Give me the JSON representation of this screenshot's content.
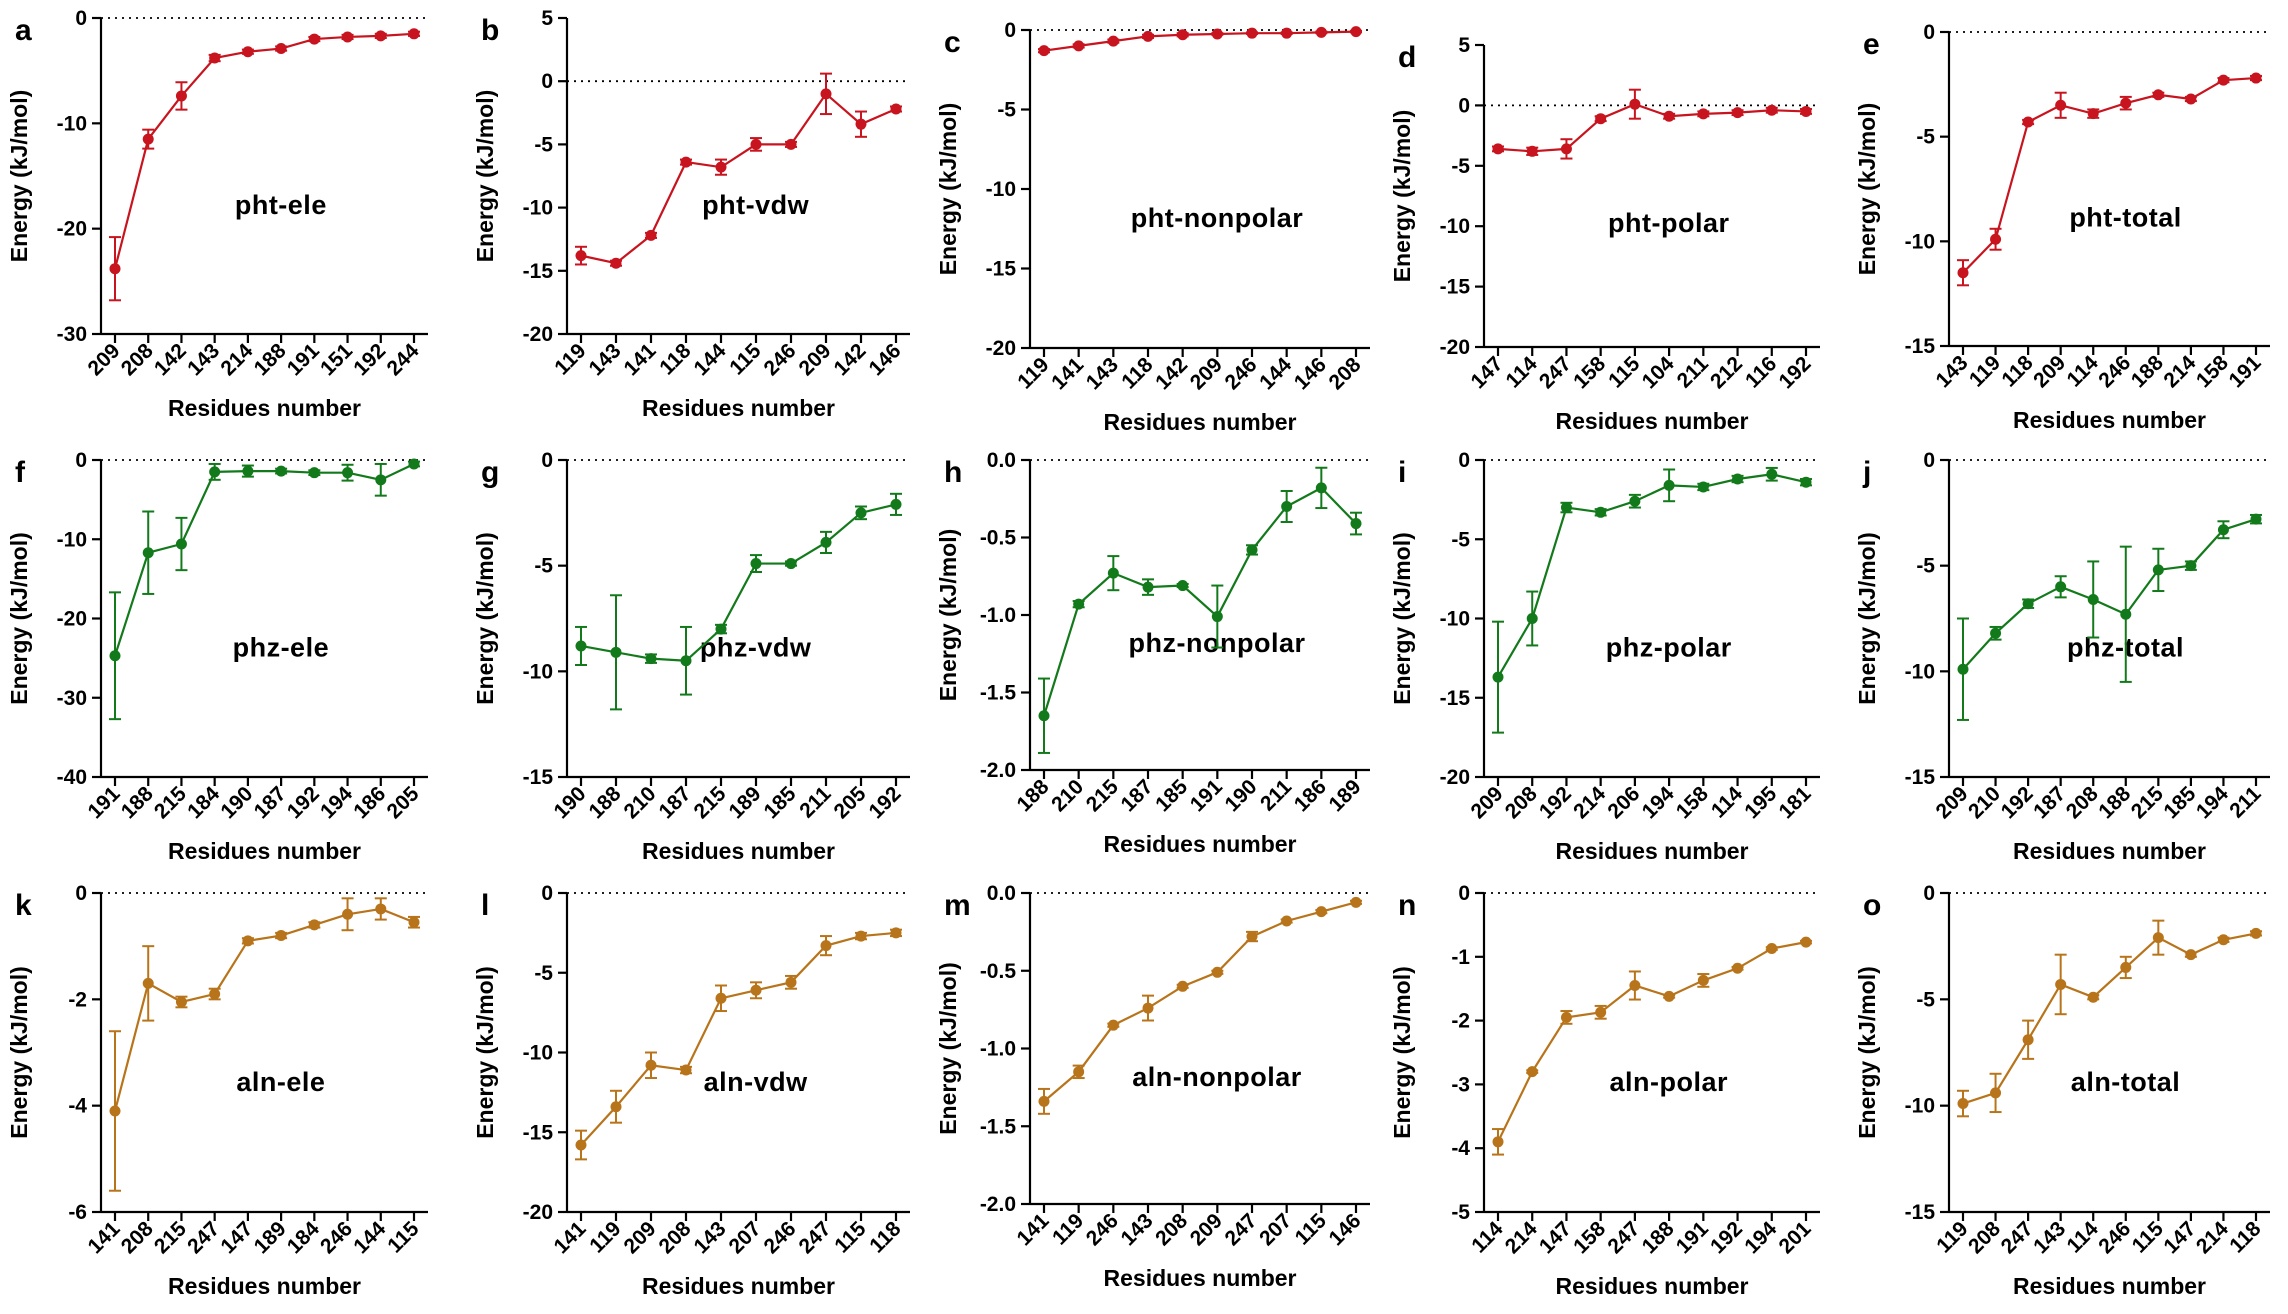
{
  "figure": {
    "colors": {
      "pht": "#c8141e",
      "phz": "#137a1b",
      "aln": "#b8741a"
    },
    "xlabel": "Residues number",
    "ylabel": "Energy (kJ/mol)"
  },
  "chart_data": [
    {
      "panel": "a",
      "type": "line",
      "title": "pht-ele",
      "color": "#c8141e",
      "xlabel": "Residues number",
      "ylabel": "Energy (kJ/mol)",
      "ylim": [
        -30,
        0
      ],
      "yticks": [
        "0",
        "-10",
        "-20",
        "-30"
      ],
      "ytick_values": [
        0,
        -10,
        -20,
        -30
      ],
      "categories": [
        "209",
        "208",
        "142",
        "143",
        "214",
        "188",
        "191",
        "151",
        "192",
        "244"
      ],
      "values": [
        -23.8,
        -11.5,
        -7.4,
        -3.8,
        -3.2,
        -2.9,
        -2.0,
        -1.8,
        -1.7,
        -1.5
      ],
      "errors": [
        3.0,
        0.9,
        1.3,
        0.3,
        0.2,
        0.2,
        0.2,
        0.2,
        0.2,
        0.2
      ]
    },
    {
      "panel": "b",
      "type": "line",
      "title": "pht-vdw",
      "color": "#c8141e",
      "xlabel": "Residues number",
      "ylabel": "Energy (kJ/mol)",
      "ylim": [
        -20,
        5
      ],
      "yticks": [
        "5",
        "0",
        "-5",
        "-10",
        "-15",
        "-20"
      ],
      "ytick_values": [
        5,
        0,
        -5,
        -10,
        -15,
        -20
      ],
      "categories": [
        "119",
        "143",
        "141",
        "118",
        "144",
        "115",
        "246",
        "209",
        "142",
        "146"
      ],
      "values": [
        -13.8,
        -14.4,
        -12.2,
        -6.4,
        -6.8,
        -5.0,
        -5.0,
        -1.0,
        -3.4,
        -2.2
      ],
      "errors": [
        0.7,
        0.2,
        0.2,
        0.2,
        0.6,
        0.5,
        0.2,
        1.6,
        1.0,
        0.2
      ]
    },
    {
      "panel": "c",
      "type": "line",
      "title": "pht-nonpolar",
      "color": "#c8141e",
      "xlabel": "Residues number",
      "ylabel": "Energy (kJ/mol)",
      "ylim": [
        -20,
        0
      ],
      "yticks": [
        "0",
        "-5",
        "-10",
        "-15",
        "-20"
      ],
      "ytick_values": [
        0,
        -5,
        -10,
        -15,
        -20
      ],
      "categories": [
        "119",
        "141",
        "143",
        "118",
        "142",
        "209",
        "246",
        "144",
        "146",
        "208"
      ],
      "values": [
        -1.3,
        -1.0,
        -0.7,
        -0.4,
        -0.3,
        -0.25,
        -0.2,
        -0.2,
        -0.15,
        -0.1
      ],
      "errors": [
        0.1,
        0.1,
        0.1,
        0.1,
        0.1,
        0.05,
        0.05,
        0.05,
        0.05,
        0.05
      ]
    },
    {
      "panel": "d",
      "type": "line",
      "title": "pht-polar",
      "color": "#c8141e",
      "xlabel": "Residues number",
      "ylabel": "Energy (kJ/mol)",
      "ylim": [
        -20,
        5
      ],
      "yticks": [
        "5",
        "0",
        "-5",
        "-10",
        "-15",
        "-20"
      ],
      "ytick_values": [
        5,
        0,
        -5,
        -10,
        -15,
        -20
      ],
      "categories": [
        "147",
        "114",
        "247",
        "158",
        "115",
        "104",
        "211",
        "212",
        "116",
        "192"
      ],
      "values": [
        -3.6,
        -3.8,
        -3.6,
        -1.1,
        0.1,
        -0.9,
        -0.7,
        -0.6,
        -0.4,
        -0.5
      ],
      "errors": [
        0.2,
        0.3,
        0.8,
        0.2,
        1.2,
        0.2,
        0.2,
        0.2,
        0.2,
        0.2
      ]
    },
    {
      "panel": "e",
      "type": "line",
      "title": "pht-total",
      "color": "#c8141e",
      "xlabel": "Residues number",
      "ylabel": "Energy (kJ/mol)",
      "ylim": [
        -15,
        0
      ],
      "yticks": [
        "0",
        "-5",
        "-10",
        "-15"
      ],
      "ytick_values": [
        0,
        -5,
        -10,
        -15
      ],
      "categories": [
        "143",
        "119",
        "118",
        "209",
        "114",
        "246",
        "188",
        "214",
        "158",
        "191"
      ],
      "values": [
        -11.5,
        -9.9,
        -4.3,
        -3.5,
        -3.9,
        -3.4,
        -3.0,
        -3.2,
        -2.3,
        -2.2
      ],
      "errors": [
        0.6,
        0.5,
        0.1,
        0.6,
        0.2,
        0.3,
        0.1,
        0.1,
        0.1,
        0.1
      ]
    },
    {
      "panel": "f",
      "type": "line",
      "title": "phz-ele",
      "color": "#137a1b",
      "xlabel": "Residues number",
      "ylabel": "Energy (kJ/mol)",
      "ylim": [
        -40,
        0
      ],
      "yticks": [
        "0",
        "-10",
        "-20",
        "-30",
        "-40"
      ],
      "ytick_values": [
        0,
        -10,
        -20,
        -30,
        -40
      ],
      "categories": [
        "191",
        "188",
        "215",
        "184",
        "190",
        "187",
        "192",
        "194",
        "186",
        "205"
      ],
      "values": [
        -24.7,
        -11.7,
        -10.6,
        -1.5,
        -1.4,
        -1.4,
        -1.6,
        -1.6,
        -2.5,
        -0.5
      ],
      "errors": [
        8.0,
        5.2,
        3.3,
        1.0,
        0.7,
        0.3,
        0.3,
        1.0,
        2.0,
        0.3
      ]
    },
    {
      "panel": "g",
      "type": "line",
      "title": "phz-vdw",
      "color": "#137a1b",
      "xlabel": "Residues number",
      "ylabel": "Energy (kJ/mol)",
      "ylim": [
        -15,
        0
      ],
      "yticks": [
        "0",
        "-5",
        "-10",
        "-15"
      ],
      "ytick_values": [
        0,
        -5,
        -10,
        -15
      ],
      "categories": [
        "190",
        "188",
        "210",
        "187",
        "215",
        "189",
        "185",
        "211",
        "205",
        "192"
      ],
      "values": [
        -8.8,
        -9.1,
        -9.4,
        -9.5,
        -8.0,
        -4.9,
        -4.9,
        -3.9,
        -2.5,
        -2.1
      ],
      "errors": [
        0.9,
        2.7,
        0.2,
        1.6,
        0.2,
        0.4,
        0.1,
        0.5,
        0.3,
        0.5
      ]
    },
    {
      "panel": "h",
      "type": "line",
      "title": "phz-nonpolar",
      "color": "#137a1b",
      "xlabel": "Residues number",
      "ylabel": "Energy (kJ/mol)",
      "ylim": [
        -2.0,
        0.0
      ],
      "yticks": [
        "0.0",
        "-0.5",
        "-1.0",
        "-1.5",
        "-2.0"
      ],
      "ytick_values": [
        0,
        -0.5,
        -1.0,
        -1.5,
        -2.0
      ],
      "categories": [
        "188",
        "210",
        "215",
        "187",
        "185",
        "191",
        "190",
        "211",
        "186",
        "189"
      ],
      "values": [
        -1.65,
        -0.93,
        -0.73,
        -0.82,
        -0.81,
        -1.01,
        -0.58,
        -0.3,
        -0.18,
        -0.41
      ],
      "errors": [
        0.24,
        0.02,
        0.11,
        0.05,
        0.01,
        0.2,
        0.03,
        0.1,
        0.13,
        0.07
      ]
    },
    {
      "panel": "i",
      "type": "line",
      "title": "phz-polar",
      "color": "#137a1b",
      "xlabel": "Residues number",
      "ylabel": "Energy (kJ/mol)",
      "ylim": [
        -20,
        0
      ],
      "yticks": [
        "0",
        "-5",
        "-10",
        "-15",
        "-20"
      ],
      "ytick_values": [
        0,
        -5,
        -10,
        -15,
        -20
      ],
      "categories": [
        "209",
        "208",
        "192",
        "214",
        "206",
        "194",
        "158",
        "114",
        "195",
        "181"
      ],
      "values": [
        -13.7,
        -10.0,
        -3.0,
        -3.3,
        -2.6,
        -1.6,
        -1.7,
        -1.2,
        -0.9,
        -1.4
      ],
      "errors": [
        3.5,
        1.7,
        0.3,
        0.2,
        0.4,
        1.0,
        0.2,
        0.2,
        0.4,
        0.2
      ]
    },
    {
      "panel": "j",
      "type": "line",
      "title": "phz-total",
      "color": "#137a1b",
      "xlabel": "Residues number",
      "ylabel": "Energy (kJ/mol)",
      "ylim": [
        -15,
        0
      ],
      "yticks": [
        "0",
        "-5",
        "-10",
        "-15"
      ],
      "ytick_values": [
        0,
        -5,
        -10,
        -15
      ],
      "categories": [
        "209",
        "210",
        "192",
        "187",
        "208",
        "188",
        "215",
        "185",
        "194",
        "211"
      ],
      "values": [
        -9.9,
        -8.2,
        -6.8,
        -6.0,
        -6.6,
        -7.3,
        -5.2,
        -5.0,
        -3.3,
        -2.8
      ],
      "errors": [
        2.4,
        0.3,
        0.2,
        0.5,
        1.8,
        3.2,
        1.0,
        0.2,
        0.4,
        0.2
      ]
    },
    {
      "panel": "k",
      "type": "line",
      "title": "aln-ele",
      "color": "#b8741a",
      "xlabel": "Residues number",
      "ylabel": "Energy (kJ/mol)",
      "ylim": [
        -6,
        0
      ],
      "yticks": [
        "0",
        "-2",
        "-4",
        "-6"
      ],
      "ytick_values": [
        0,
        -2,
        -4,
        -6
      ],
      "categories": [
        "141",
        "208",
        "215",
        "247",
        "147",
        "189",
        "184",
        "246",
        "144",
        "115"
      ],
      "values": [
        -4.1,
        -1.7,
        -2.05,
        -1.9,
        -0.9,
        -0.8,
        -0.6,
        -0.4,
        -0.3,
        -0.55
      ],
      "errors": [
        1.5,
        0.7,
        0.1,
        0.1,
        0.05,
        0.05,
        0.05,
        0.3,
        0.2,
        0.1
      ]
    },
    {
      "panel": "l",
      "type": "line",
      "title": "aln-vdw",
      "color": "#b8741a",
      "xlabel": "Residues number",
      "ylabel": "Energy (kJ/mol)",
      "ylim": [
        -20,
        0
      ],
      "yticks": [
        "0",
        "-5",
        "-10",
        "-15",
        "-20"
      ],
      "ytick_values": [
        0,
        -5,
        -10,
        -15,
        -20
      ],
      "categories": [
        "141",
        "119",
        "209",
        "208",
        "143",
        "207",
        "246",
        "247",
        "115",
        "118"
      ],
      "values": [
        -15.8,
        -13.4,
        -10.8,
        -11.1,
        -6.6,
        -6.1,
        -5.6,
        -3.3,
        -2.7,
        -2.5
      ],
      "errors": [
        0.9,
        1.0,
        0.8,
        0.2,
        0.8,
        0.5,
        0.4,
        0.6,
        0.2,
        0.2
      ]
    },
    {
      "panel": "m",
      "type": "line",
      "title": "aln-nonpolar",
      "color": "#b8741a",
      "xlabel": "Residues number",
      "ylabel": "Energy (kJ/mol)",
      "ylim": [
        -2.0,
        0.0
      ],
      "yticks": [
        "0.0",
        "-0.5",
        "-1.0",
        "-1.5",
        "-2.0"
      ],
      "ytick_values": [
        0,
        -0.5,
        -1.0,
        -1.5,
        -2.0
      ],
      "categories": [
        "141",
        "119",
        "246",
        "143",
        "208",
        "209",
        "247",
        "207",
        "115",
        "146"
      ],
      "values": [
        -1.34,
        -1.15,
        -0.85,
        -0.74,
        -0.6,
        -0.51,
        -0.28,
        -0.18,
        -0.12,
        -0.06
      ],
      "errors": [
        0.08,
        0.04,
        0.01,
        0.08,
        0.01,
        0.01,
        0.03,
        0.01,
        0.01,
        0.01
      ]
    },
    {
      "panel": "n",
      "type": "line",
      "title": "aln-polar",
      "color": "#b8741a",
      "xlabel": "Residues number",
      "ylabel": "Energy (kJ/mol)",
      "ylim": [
        -5,
        0
      ],
      "yticks": [
        "0",
        "-1",
        "-2",
        "-3",
        "-4",
        "-5"
      ],
      "ytick_values": [
        0,
        -1,
        -2,
        -3,
        -4,
        -5
      ],
      "categories": [
        "114",
        "214",
        "147",
        "158",
        "247",
        "188",
        "191",
        "192",
        "194",
        "201"
      ],
      "values": [
        -3.9,
        -2.8,
        -1.95,
        -1.87,
        -1.45,
        -1.62,
        -1.37,
        -1.18,
        -0.87,
        -0.77
      ],
      "errors": [
        0.2,
        0.02,
        0.1,
        0.1,
        0.22,
        0.02,
        0.1,
        0.02,
        0.02,
        0.02
      ]
    },
    {
      "panel": "o",
      "type": "line",
      "title": "aln-total",
      "color": "#b8741a",
      "xlabel": "Residues number",
      "ylabel": "Energy (kJ/mol)",
      "ylim": [
        -15,
        0
      ],
      "yticks": [
        "0",
        "-5",
        "-10",
        "-15"
      ],
      "ytick_values": [
        0,
        -5,
        -10,
        -15
      ],
      "categories": [
        "119",
        "208",
        "247",
        "143",
        "114",
        "246",
        "115",
        "147",
        "214",
        "118"
      ],
      "values": [
        -9.9,
        -9.4,
        -6.9,
        -4.3,
        -4.9,
        -3.5,
        -2.1,
        -2.9,
        -2.2,
        -1.9
      ],
      "errors": [
        0.6,
        0.9,
        0.9,
        1.4,
        0.1,
        0.5,
        0.8,
        0.1,
        0.1,
        0.1
      ]
    }
  ]
}
